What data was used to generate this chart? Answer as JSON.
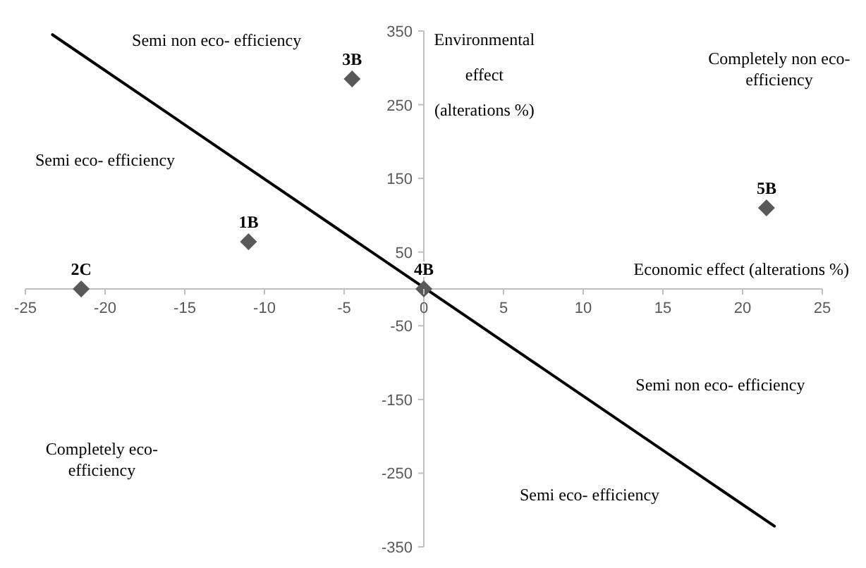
{
  "chart_data": {
    "type": "scatter",
    "xlabel": "Economic effect (alterations %)",
    "ylabel": "Environmental effect (alterations %)",
    "xlim": [
      -25,
      25
    ],
    "xticks": [
      -25,
      -20,
      -15,
      -10,
      -5,
      0,
      5,
      10,
      15,
      20,
      25
    ],
    "ylim": [
      -350,
      350
    ],
    "yticks": [
      -350,
      -250,
      -150,
      -50,
      50,
      150,
      250,
      350
    ],
    "marker": "diamond",
    "grid": false,
    "series": [
      {
        "name": "2C",
        "x": [
          -21.5
        ],
        "values": [
          0
        ],
        "color": "#595959"
      },
      {
        "name": "1B",
        "x": [
          -11
        ],
        "values": [
          64
        ],
        "color": "#595959"
      },
      {
        "name": "3B",
        "x": [
          -4.5
        ],
        "values": [
          285
        ],
        "color": "#595959"
      },
      {
        "name": "4B",
        "x": [
          0
        ],
        "values": [
          0
        ],
        "color": "#595959"
      },
      {
        "name": "5B",
        "x": [
          21.5
        ],
        "values": [
          110
        ],
        "color": "#595959"
      },
      {
        "type": "line",
        "x": [
          -23.3,
          22
        ],
        "values": [
          345,
          -322
        ],
        "color": "#000000",
        "marker": "none"
      }
    ],
    "annotations": [
      "Semi non eco- efficiency",
      "Semi eco- efficiency",
      "Completely non eco- efficiency",
      "Completely eco- efficiency",
      "Semi non eco- efficiency",
      "Semi eco- efficiency"
    ]
  }
}
